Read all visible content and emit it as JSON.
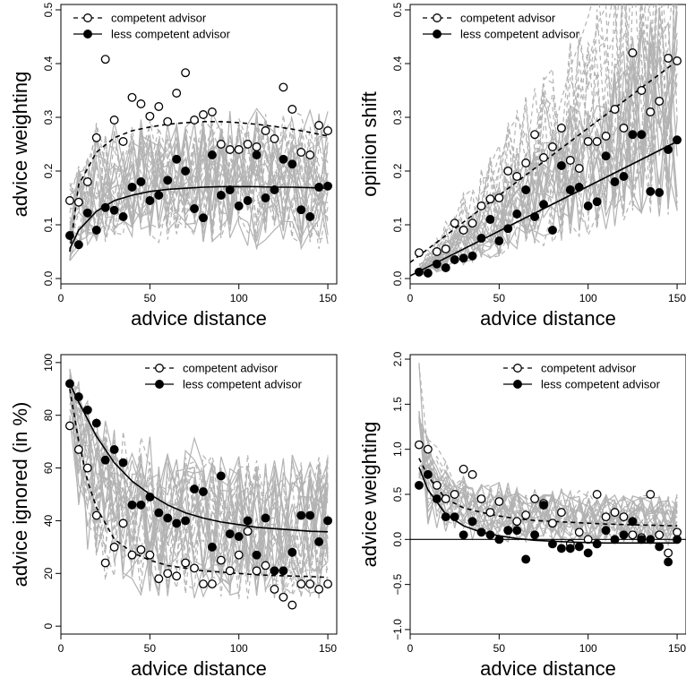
{
  "chart_data": [
    {
      "type": "scatter",
      "xlabel": "advice distance",
      "ylabel": "advice weighting",
      "xlim": [
        0,
        155
      ],
      "ylim": [
        -0.01,
        0.51
      ],
      "xticks": [
        0,
        50,
        100,
        150
      ],
      "yticks": [
        0.0,
        0.1,
        0.2,
        0.3,
        0.4,
        0.5
      ],
      "legend_position": "top-left",
      "series": [
        {
          "name": "competent advisor",
          "marker": "open-circle",
          "line": "dashed",
          "x": [
            5,
            10,
            15,
            20,
            25,
            30,
            35,
            40,
            45,
            50,
            55,
            60,
            65,
            70,
            75,
            80,
            85,
            90,
            95,
            100,
            105,
            110,
            115,
            120,
            125,
            130,
            135,
            140,
            145,
            150
          ],
          "y": [
            0.145,
            0.142,
            0.18,
            0.262,
            0.408,
            0.295,
            0.255,
            0.337,
            0.325,
            0.302,
            0.32,
            0.292,
            0.345,
            0.383,
            0.295,
            0.305,
            0.31,
            0.25,
            0.24,
            0.24,
            0.25,
            0.245,
            0.275,
            0.26,
            0.356,
            0.315,
            0.235,
            0.23,
            0.285,
            0.275
          ],
          "fit": {
            "x": [
              5,
              10,
              20,
              30,
              40,
              50,
              60,
              70,
              80,
              90,
              100,
              110,
              120,
              130,
              140,
              150
            ],
            "y": [
              0.05,
              0.175,
              0.235,
              0.262,
              0.275,
              0.282,
              0.287,
              0.29,
              0.292,
              0.292,
              0.29,
              0.287,
              0.283,
              0.278,
              0.272,
              0.265
            ]
          }
        },
        {
          "name": "less competent advisor",
          "marker": "filled-circle",
          "line": "solid",
          "x": [
            5,
            10,
            15,
            20,
            25,
            30,
            35,
            40,
            45,
            50,
            55,
            60,
            65,
            70,
            75,
            80,
            85,
            90,
            95,
            100,
            105,
            110,
            115,
            120,
            125,
            130,
            135,
            140,
            145,
            150
          ],
          "y": [
            0.08,
            0.063,
            0.122,
            0.09,
            0.132,
            0.127,
            0.115,
            0.17,
            0.18,
            0.145,
            0.155,
            0.183,
            0.222,
            0.2,
            0.13,
            0.113,
            0.23,
            0.155,
            0.165,
            0.135,
            0.145,
            0.23,
            0.15,
            0.165,
            0.222,
            0.213,
            0.128,
            0.115,
            0.17,
            0.172
          ],
          "fit": {
            "x": [
              5,
              10,
              20,
              30,
              40,
              50,
              60,
              70,
              80,
              90,
              100,
              110,
              120,
              130,
              140,
              150
            ],
            "y": [
              0.055,
              0.09,
              0.125,
              0.145,
              0.155,
              0.162,
              0.166,
              0.168,
              0.17,
              0.171,
              0.171,
              0.171,
              0.17,
              0.17,
              0.169,
              0.168
            ]
          }
        }
      ]
    },
    {
      "type": "scatter",
      "xlabel": "advice distance",
      "ylabel": "opinion shift",
      "xlim": [
        0,
        155
      ],
      "ylim": [
        -0.01,
        0.51
      ],
      "xticks": [
        0,
        50,
        100,
        150
      ],
      "yticks": [
        0.0,
        0.1,
        0.2,
        0.3,
        0.4,
        0.5
      ],
      "legend_position": "top-left",
      "series": [
        {
          "name": "competent advisor",
          "marker": "open-circle",
          "line": "dashed",
          "x": [
            5,
            15,
            20,
            25,
            30,
            35,
            40,
            45,
            50,
            55,
            60,
            65,
            70,
            75,
            80,
            85,
            90,
            95,
            100,
            105,
            110,
            115,
            120,
            125,
            130,
            135,
            140,
            145,
            150
          ],
          "y": [
            0.048,
            0.05,
            0.055,
            0.103,
            0.09,
            0.103,
            0.135,
            0.148,
            0.15,
            0.2,
            0.19,
            0.215,
            0.268,
            0.225,
            0.245,
            0.28,
            0.22,
            0.205,
            0.255,
            0.255,
            0.265,
            0.315,
            0.28,
            0.42,
            0.35,
            0.31,
            0.33,
            0.41,
            0.405
          ],
          "fit": {
            "x": [
              0,
              150
            ],
            "y": [
              0.03,
              0.405
            ]
          }
        },
        {
          "name": "less competent advisor",
          "marker": "filled-circle",
          "line": "solid",
          "x": [
            5,
            10,
            15,
            20,
            25,
            30,
            35,
            40,
            45,
            50,
            55,
            60,
            65,
            70,
            75,
            80,
            85,
            90,
            95,
            100,
            105,
            110,
            115,
            120,
            125,
            130,
            135,
            140,
            145,
            150
          ],
          "y": [
            0.012,
            0.01,
            0.027,
            0.02,
            0.035,
            0.038,
            0.042,
            0.075,
            0.11,
            0.07,
            0.093,
            0.12,
            0.165,
            0.115,
            0.138,
            0.09,
            0.21,
            0.165,
            0.17,
            0.135,
            0.143,
            0.228,
            0.18,
            0.19,
            0.268,
            0.268,
            0.162,
            0.16,
            0.24,
            0.258
          ],
          "fit": {
            "x": [
              0,
              150
            ],
            "y": [
              0.005,
              0.255
            ]
          }
        }
      ]
    },
    {
      "type": "scatter",
      "xlabel": "advice distance",
      "ylabel": "advice ignored (in %)",
      "xlim": [
        0,
        155
      ],
      "ylim": [
        -3,
        103
      ],
      "xticks": [
        0,
        50,
        100,
        150
      ],
      "yticks": [
        0,
        20,
        40,
        60,
        80,
        100
      ],
      "legend_position": "top-right",
      "series": [
        {
          "name": "competent advisor",
          "marker": "open-circle",
          "line": "dashed",
          "x": [
            5,
            10,
            15,
            20,
            25,
            30,
            35,
            40,
            45,
            50,
            55,
            60,
            65,
            70,
            75,
            80,
            85,
            90,
            95,
            100,
            105,
            110,
            115,
            120,
            125,
            130,
            135,
            140,
            145,
            150
          ],
          "y": [
            76,
            67,
            60,
            42,
            24,
            30,
            39,
            27,
            29,
            27,
            18,
            20,
            19,
            24,
            22,
            16,
            16,
            25,
            21,
            27,
            36,
            21,
            23,
            14,
            11,
            8,
            16,
            16,
            14,
            16
          ],
          "fit": {
            "x": [
              5,
              10,
              15,
              20,
              30,
              40,
              50,
              60,
              70,
              80,
              90,
              100,
              110,
              120,
              130,
              140,
              150
            ],
            "y": [
              90,
              70,
              55,
              45,
              33,
              28,
              25,
              23,
              22,
              21,
              20.5,
              20,
              19.5,
              19.2,
              19,
              18.8,
              18.5
            ]
          }
        },
        {
          "name": "less competent advisor",
          "marker": "filled-circle",
          "line": "solid",
          "x": [
            5,
            10,
            15,
            20,
            25,
            30,
            35,
            40,
            45,
            50,
            55,
            60,
            65,
            70,
            75,
            80,
            85,
            90,
            95,
            100,
            105,
            110,
            115,
            120,
            125,
            130,
            135,
            140,
            145,
            150
          ],
          "y": [
            92,
            87,
            82,
            77,
            63,
            67,
            62,
            46,
            46,
            49,
            43,
            41,
            39,
            40,
            52,
            51,
            30,
            57,
            35,
            34,
            40,
            27,
            41,
            21,
            21,
            28,
            42,
            42,
            32,
            40
          ],
          "fit": {
            "x": [
              5,
              10,
              20,
              30,
              40,
              50,
              60,
              70,
              80,
              90,
              100,
              110,
              120,
              130,
              140,
              150
            ],
            "y": [
              92,
              85,
              72,
              62,
              55,
              50,
              46,
              43,
              41,
              39.5,
              38.5,
              37.5,
              37,
              36.5,
              36,
              35.8
            ]
          }
        }
      ]
    },
    {
      "type": "scatter",
      "xlabel": "advice distance",
      "ylabel": "advice weighting",
      "xlim": [
        0,
        155
      ],
      "ylim": [
        -1.05,
        2.05
      ],
      "xticks": [
        0,
        50,
        100,
        150
      ],
      "yticks": [
        -1.0,
        -0.5,
        0.0,
        0.5,
        1.0,
        1.5,
        2.0
      ],
      "reference_line_y": 0,
      "legend_position": "top-right",
      "series": [
        {
          "name": "competent advisor",
          "marker": "open-circle",
          "line": "dashed",
          "x": [
            5,
            10,
            15,
            20,
            25,
            30,
            35,
            40,
            45,
            50,
            55,
            60,
            65,
            70,
            75,
            80,
            85,
            90,
            95,
            100,
            105,
            110,
            115,
            120,
            125,
            130,
            135,
            140,
            145,
            150
          ],
          "y": [
            1.05,
            1.0,
            0.6,
            0.45,
            0.5,
            0.78,
            0.72,
            0.45,
            0.3,
            0.42,
            0.1,
            0.2,
            0.27,
            0.45,
            0.4,
            0.18,
            0.3,
            -0.05,
            0.08,
            0.0,
            0.5,
            0.25,
            0.3,
            0.25,
            0.05,
            0.02,
            0.5,
            0.05,
            -0.15,
            0.08
          ],
          "fit": {
            "x": [
              5,
              10,
              20,
              30,
              40,
              50,
              60,
              70,
              80,
              90,
              100,
              110,
              120,
              130,
              140,
              150
            ],
            "y": [
              0.9,
              0.7,
              0.45,
              0.35,
              0.3,
              0.26,
              0.23,
              0.21,
              0.2,
              0.19,
              0.18,
              0.17,
              0.165,
              0.16,
              0.155,
              0.15
            ]
          }
        },
        {
          "name": "less competent advisor",
          "marker": "filled-circle",
          "line": "solid",
          "x": [
            5,
            10,
            15,
            20,
            25,
            30,
            35,
            40,
            45,
            50,
            55,
            60,
            65,
            70,
            75,
            80,
            85,
            90,
            95,
            100,
            105,
            110,
            115,
            120,
            125,
            130,
            135,
            140,
            145,
            150
          ],
          "y": [
            0.6,
            0.72,
            0.45,
            0.25,
            0.25,
            0.05,
            0.2,
            0.08,
            0.05,
            0.0,
            0.1,
            0.1,
            -0.22,
            0.05,
            0.38,
            -0.05,
            -0.1,
            -0.1,
            -0.08,
            -0.15,
            -0.05,
            0.1,
            0.0,
            0.05,
            0.2,
            0.0,
            0.0,
            -0.08,
            -0.25,
            0.0
          ],
          "fit": {
            "x": [
              5,
              10,
              20,
              30,
              40,
              50,
              60,
              70,
              80,
              90,
              100,
              110,
              120,
              130,
              140,
              150
            ],
            "y": [
              0.8,
              0.55,
              0.28,
              0.15,
              0.08,
              0.04,
              0.01,
              -0.01,
              -0.02,
              -0.03,
              -0.035,
              -0.04,
              -0.04,
              -0.04,
              -0.04,
              -0.04
            ]
          }
        }
      ]
    }
  ]
}
